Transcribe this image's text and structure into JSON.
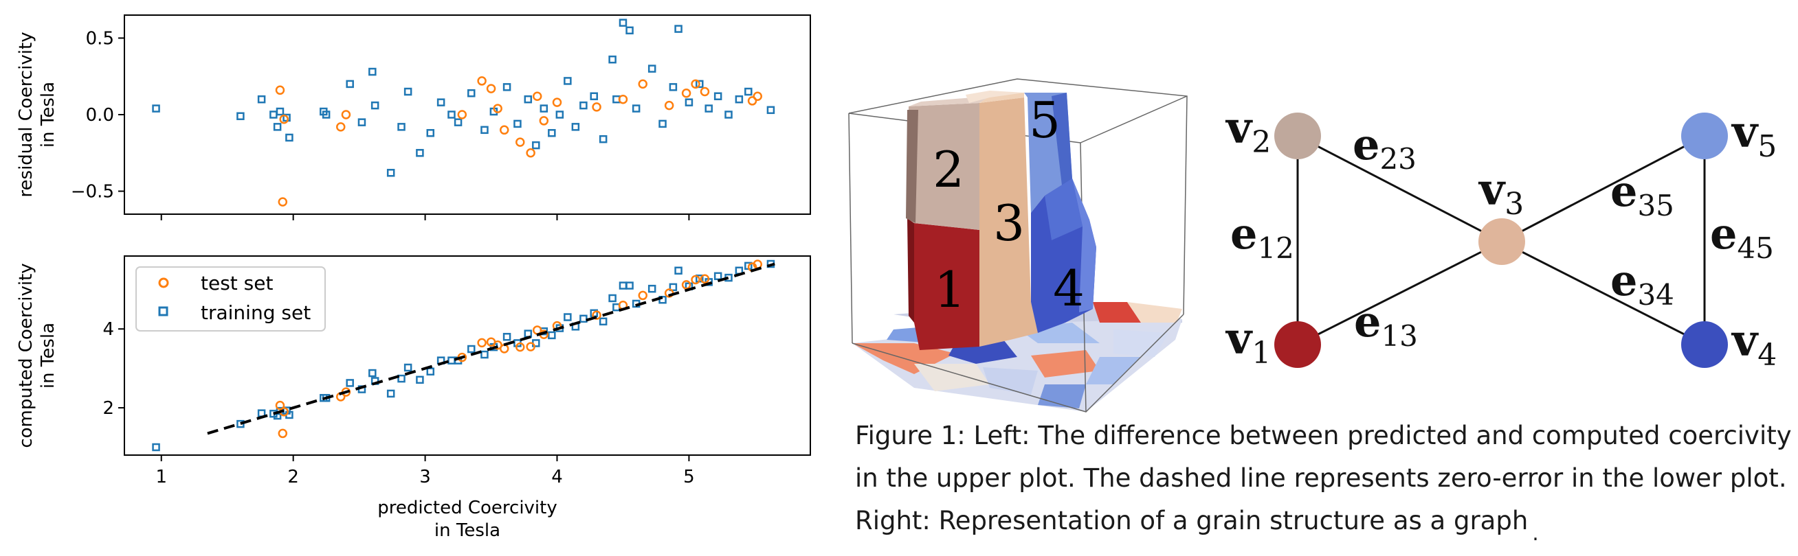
{
  "chart_data": [
    {
      "type": "scatter",
      "title": "",
      "xlabel": "",
      "ylabel": "residual Coercivity in Tesla",
      "ylabel_lines": [
        "residual Coercivity",
        "in Tesla"
      ],
      "xlim": [
        0.72,
        5.92
      ],
      "ylim": [
        -0.65,
        0.65
      ],
      "yticks": [
        0.5,
        0.0,
        -0.5
      ],
      "ytick_labels": [
        "0.5",
        "0.0",
        "−0.5"
      ],
      "series": [
        {
          "name": "test set",
          "marker": "circle",
          "color": "#ff7f0e",
          "x": [
            1.9,
            1.93,
            1.92,
            2.36,
            2.4,
            3.28,
            3.43,
            3.5,
            3.55,
            3.6,
            3.72,
            3.8,
            3.85,
            3.9,
            4.0,
            4.3,
            4.5,
            4.65,
            4.85,
            4.98,
            5.05,
            5.12,
            5.48,
            5.52
          ],
          "y": [
            0.16,
            -0.03,
            -0.57,
            -0.08,
            0.0,
            0.0,
            0.22,
            0.17,
            0.04,
            -0.1,
            -0.18,
            -0.25,
            0.12,
            -0.04,
            0.08,
            0.05,
            0.1,
            0.2,
            0.06,
            0.14,
            0.2,
            0.15,
            0.09,
            0.12
          ]
        },
        {
          "name": "training set",
          "marker": "square",
          "color": "#1f77b4",
          "x": [
            0.96,
            1.6,
            1.76,
            1.85,
            1.88,
            1.9,
            1.95,
            1.97,
            2.23,
            2.25,
            2.43,
            2.52,
            2.6,
            2.62,
            2.74,
            2.82,
            2.87,
            2.96,
            3.04,
            3.12,
            3.2,
            3.25,
            3.35,
            3.45,
            3.52,
            3.62,
            3.7,
            3.78,
            3.84,
            3.9,
            3.96,
            4.02,
            4.08,
            4.14,
            4.2,
            4.28,
            4.35,
            4.42,
            4.45,
            4.5,
            4.55,
            4.6,
            4.72,
            4.8,
            4.88,
            4.92,
            5.0,
            5.08,
            5.15,
            5.22,
            5.3,
            5.38,
            5.45,
            5.62
          ],
          "y": [
            0.04,
            -0.01,
            0.1,
            0.0,
            -0.08,
            0.02,
            -0.02,
            -0.15,
            0.02,
            0.0,
            0.2,
            -0.05,
            0.28,
            0.06,
            -0.38,
            -0.08,
            0.15,
            -0.25,
            -0.12,
            0.08,
            0.0,
            -0.05,
            0.14,
            -0.1,
            0.02,
            0.18,
            -0.06,
            0.1,
            -0.2,
            0.04,
            -0.12,
            0.0,
            0.22,
            -0.08,
            0.06,
            0.12,
            -0.16,
            0.36,
            0.1,
            0.6,
            0.55,
            0.04,
            0.3,
            -0.06,
            0.18,
            0.56,
            0.08,
            0.2,
            0.04,
            0.12,
            0.0,
            0.1,
            0.15,
            0.03
          ]
        }
      ]
    },
    {
      "type": "scatter",
      "title": "",
      "xlabel": "predicted Coercivity in Tesla",
      "xlabel_lines": [
        "predicted Coercivity",
        "in Tesla"
      ],
      "ylabel": "computed Coercivity in Tesla",
      "ylabel_lines": [
        "computed Coercivity",
        "in Tesla"
      ],
      "xlim": [
        0.72,
        5.92
      ],
      "ylim": [
        0.8,
        5.85
      ],
      "xticks": [
        1,
        2,
        3,
        4,
        5
      ],
      "xtick_labels": [
        "1",
        "2",
        "3",
        "4",
        "5"
      ],
      "yticks": [
        2,
        4
      ],
      "ytick_labels": [
        "2",
        "4"
      ],
      "legend_position": "top-left",
      "reference_line": {
        "style": "dashed",
        "color": "#000000",
        "x": [
          1.35,
          5.65
        ],
        "y": [
          1.35,
          5.65
        ]
      },
      "series": [
        {
          "name": "test set",
          "marker": "circle",
          "color": "#ff7f0e",
          "x": [
            1.9,
            1.93,
            1.92,
            2.36,
            2.4,
            3.28,
            3.43,
            3.5,
            3.55,
            3.6,
            3.72,
            3.8,
            3.85,
            3.9,
            4.0,
            4.3,
            4.5,
            4.65,
            4.85,
            4.98,
            5.05,
            5.12,
            5.48,
            5.52
          ],
          "y": [
            2.06,
            1.9,
            1.35,
            2.28,
            2.4,
            3.28,
            3.65,
            3.67,
            3.59,
            3.5,
            3.54,
            3.55,
            3.97,
            3.86,
            4.08,
            4.35,
            4.6,
            4.85,
            4.91,
            5.12,
            5.25,
            5.27,
            5.57,
            5.64
          ]
        },
        {
          "name": "training set",
          "marker": "square",
          "color": "#1f77b4",
          "x": [
            0.96,
            1.6,
            1.76,
            1.85,
            1.88,
            1.9,
            1.95,
            1.97,
            2.23,
            2.25,
            2.43,
            2.52,
            2.6,
            2.62,
            2.74,
            2.82,
            2.87,
            2.96,
            3.04,
            3.12,
            3.2,
            3.25,
            3.35,
            3.45,
            3.52,
            3.62,
            3.7,
            3.78,
            3.84,
            3.9,
            3.96,
            4.02,
            4.08,
            4.14,
            4.2,
            4.28,
            4.35,
            4.42,
            4.45,
            4.5,
            4.55,
            4.6,
            4.72,
            4.8,
            4.88,
            4.92,
            5.0,
            5.08,
            5.15,
            5.22,
            5.3,
            5.38,
            5.45,
            5.62
          ],
          "y": [
            1.0,
            1.59,
            1.86,
            1.85,
            1.8,
            1.92,
            1.93,
            1.82,
            2.25,
            2.25,
            2.63,
            2.47,
            2.88,
            2.68,
            2.36,
            2.74,
            3.02,
            2.71,
            2.92,
            3.2,
            3.2,
            3.2,
            3.49,
            3.35,
            3.54,
            3.8,
            3.64,
            3.88,
            3.64,
            3.94,
            3.84,
            4.02,
            4.3,
            4.06,
            4.26,
            4.4,
            4.19,
            4.78,
            4.55,
            5.1,
            5.1,
            4.64,
            5.02,
            4.74,
            5.06,
            5.48,
            5.08,
            5.28,
            5.19,
            5.34,
            5.3,
            5.48,
            5.6,
            5.65
          ]
        }
      ]
    }
  ],
  "figure": {
    "grain_labels": [
      "1",
      "2",
      "3",
      "4",
      "5"
    ],
    "graph": {
      "nodes": [
        {
          "id": "v1",
          "base": "v",
          "sub": "1",
          "color": "#a51f24"
        },
        {
          "id": "v2",
          "base": "v",
          "sub": "2",
          "color": "#bfa89c"
        },
        {
          "id": "v3",
          "base": "v",
          "sub": "3",
          "color": "#dfb59b"
        },
        {
          "id": "v4",
          "base": "v",
          "sub": "4",
          "color": "#3b4fbe"
        },
        {
          "id": "v5",
          "base": "v",
          "sub": "5",
          "color": "#7a97dd"
        }
      ],
      "edges": [
        {
          "id": "e12",
          "base": "e",
          "sub": "12"
        },
        {
          "id": "e13",
          "base": "e",
          "sub": "13"
        },
        {
          "id": "e23",
          "base": "e",
          "sub": "23"
        },
        {
          "id": "e34",
          "base": "e",
          "sub": "34"
        },
        {
          "id": "e35",
          "base": "e",
          "sub": "35"
        },
        {
          "id": "e45",
          "base": "e",
          "sub": "45"
        }
      ]
    }
  },
  "caption": {
    "lines": [
      "Figure 1: Left: The difference between predicted and computed coercivity",
      "in the upper plot. The dashed line represents zero-error in the lower plot.",
      "Right: Representation of a grain structure as a graph"
    ],
    "trailing_mark": "."
  }
}
